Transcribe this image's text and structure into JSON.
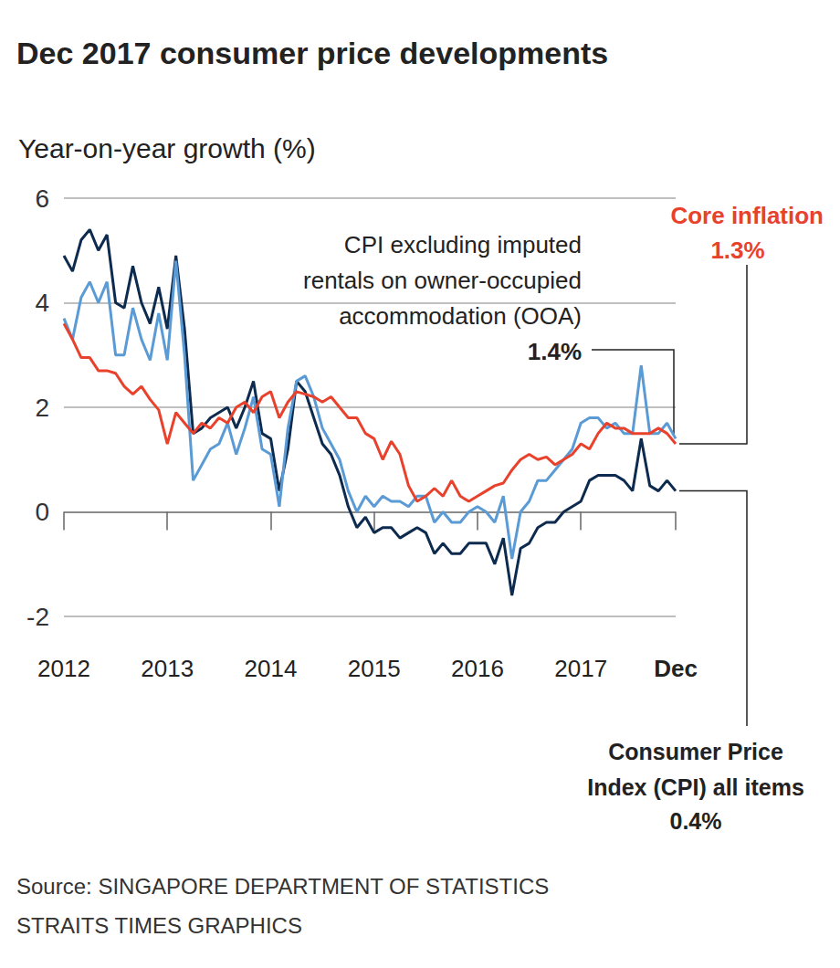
{
  "chart_data": {
    "type": "line",
    "title": "Dec 2017 consumer price developments",
    "y_label": "Year-on-year growth (%)",
    "categories": [
      "2012",
      null,
      null,
      null,
      null,
      null,
      null,
      null,
      null,
      null,
      null,
      null,
      "2013",
      null,
      null,
      null,
      null,
      null,
      null,
      null,
      null,
      null,
      null,
      null,
      "2014",
      null,
      null,
      null,
      null,
      null,
      null,
      null,
      null,
      null,
      null,
      null,
      "2015",
      null,
      null,
      null,
      null,
      null,
      null,
      null,
      null,
      null,
      null,
      null,
      "2016",
      null,
      null,
      null,
      null,
      null,
      null,
      null,
      null,
      null,
      null,
      null,
      "2017",
      null,
      null,
      null,
      null,
      null,
      null,
      null,
      null,
      null,
      null,
      "Dec"
    ],
    "series": [
      {
        "name": "Consumer Price\nIndex (CPI) all items",
        "color": "#0d2a4f",
        "end_label": "0.4%",
        "values": [
          4.9,
          4.6,
          5.2,
          5.4,
          5.0,
          5.3,
          4.0,
          3.9,
          4.7,
          4.0,
          3.6,
          4.3,
          3.5,
          4.9,
          3.5,
          1.5,
          1.6,
          1.8,
          1.9,
          2.0,
          1.6,
          2.0,
          2.5,
          1.5,
          1.4,
          0.4,
          1.2,
          2.5,
          2.3,
          1.8,
          1.3,
          1.1,
          0.7,
          0.1,
          -0.3,
          -0.1,
          -0.4,
          -0.3,
          -0.3,
          -0.5,
          -0.4,
          -0.3,
          -0.4,
          -0.8,
          -0.6,
          -0.8,
          -0.8,
          -0.6,
          -0.6,
          -0.6,
          -1.0,
          -0.5,
          -1.6,
          -0.7,
          -0.6,
          -0.3,
          -0.2,
          -0.2,
          0.0,
          0.1,
          0.2,
          0.6,
          0.7,
          0.7,
          0.7,
          0.6,
          0.4,
          1.4,
          0.5,
          0.4,
          0.6,
          0.4
        ]
      },
      {
        "name": "CPI excluding imputed\nrentals on owner-occupied\naccommodation (OOA)",
        "color": "#5b9bd5",
        "end_label": "1.4%",
        "values": [
          3.7,
          3.3,
          4.1,
          4.4,
          4.0,
          4.4,
          3.0,
          3.0,
          3.9,
          3.3,
          2.9,
          3.8,
          2.9,
          4.8,
          3.0,
          0.6,
          0.9,
          1.2,
          1.3,
          1.7,
          1.1,
          1.6,
          2.2,
          1.2,
          1.1,
          0.1,
          1.6,
          2.5,
          2.6,
          2.2,
          1.6,
          1.3,
          1.0,
          0.4,
          0.0,
          0.3,
          0.1,
          0.3,
          0.2,
          0.2,
          0.1,
          0.3,
          0.3,
          -0.2,
          0.0,
          -0.2,
          -0.2,
          0.0,
          0.1,
          0.0,
          -0.2,
          0.3,
          -0.9,
          0.0,
          0.2,
          0.6,
          0.6,
          0.8,
          1.0,
          1.2,
          1.7,
          1.8,
          1.8,
          1.6,
          1.7,
          1.5,
          1.5,
          2.8,
          1.5,
          1.5,
          1.7,
          1.4
        ]
      },
      {
        "name": "Core inflation",
        "color": "#e8412c",
        "end_label": "1.3%",
        "values": [
          3.6,
          3.3,
          2.95,
          2.95,
          2.7,
          2.7,
          2.65,
          2.4,
          2.25,
          2.4,
          2.15,
          1.95,
          1.3,
          1.9,
          1.7,
          1.5,
          1.7,
          1.6,
          1.8,
          1.7,
          2.0,
          2.1,
          1.9,
          2.2,
          2.3,
          1.8,
          2.1,
          2.3,
          2.25,
          2.2,
          2.1,
          2.2,
          2.0,
          1.8,
          1.8,
          1.5,
          1.4,
          1.0,
          1.35,
          1.1,
          0.5,
          0.2,
          0.3,
          0.45,
          0.3,
          0.6,
          0.3,
          0.2,
          0.3,
          0.4,
          0.5,
          0.55,
          0.8,
          1.0,
          1.1,
          1.0,
          1.05,
          0.9,
          1.0,
          1.1,
          1.3,
          1.2,
          1.5,
          1.7,
          1.6,
          1.6,
          1.5,
          1.5,
          1.5,
          1.6,
          1.5,
          1.3
        ]
      }
    ],
    "ylim": [
      -2,
      6
    ],
    "yticks": [
      -2,
      0,
      2,
      4,
      6
    ],
    "grid": true,
    "source": [
      "Source: SINGAPORE DEPARTMENT OF STATISTICS",
      "STRAITS TIMES GRAPHICS"
    ]
  }
}
